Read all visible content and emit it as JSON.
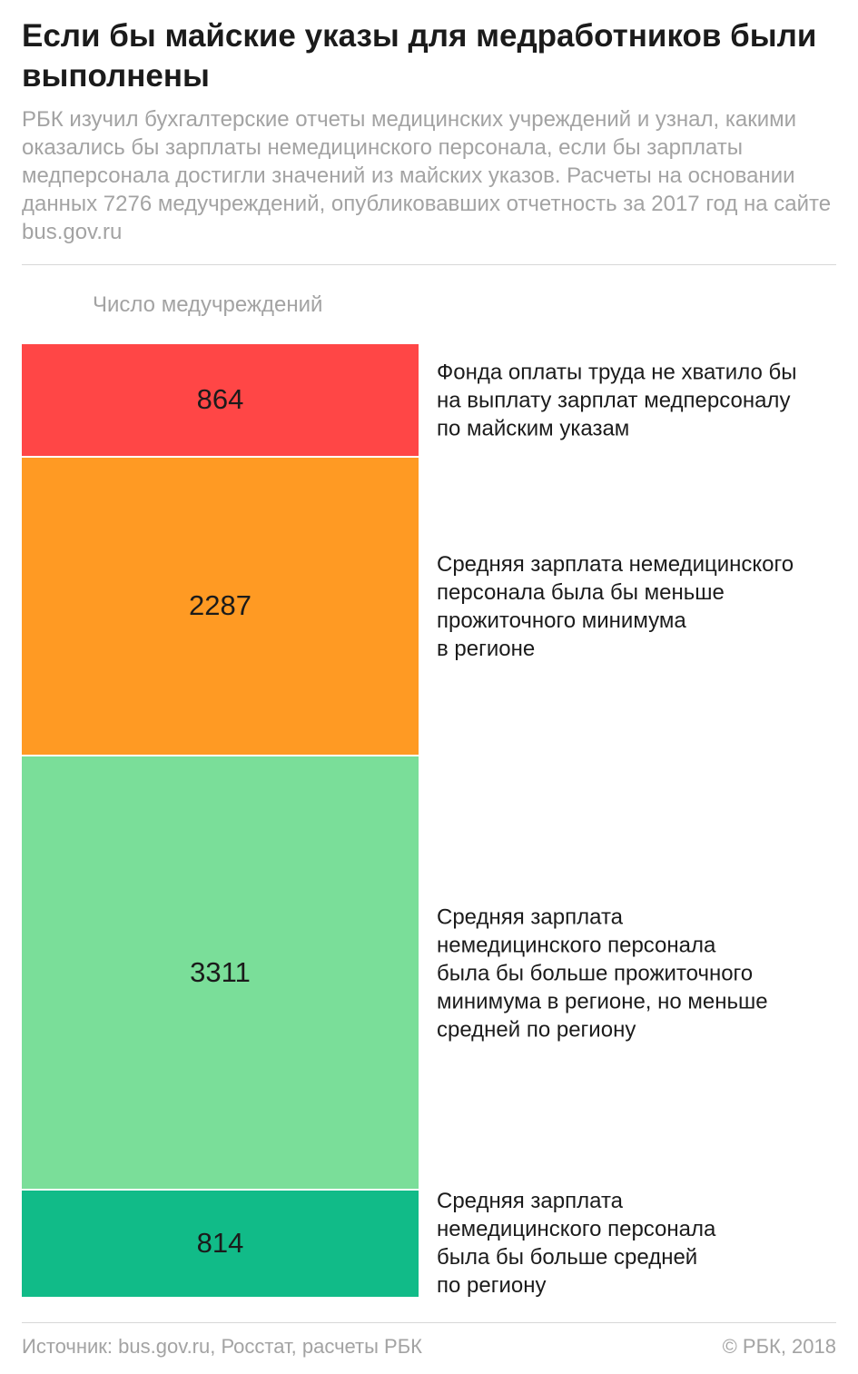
{
  "title": "Если бы майские указы для медработников были выполнены",
  "subtitle": "РБК изучил бухгалтерские отчеты медицинских учреждений и узнал, какими оказались бы зарплаты немедицинского персонала, если бы зарплаты медперсонала достигли значений из майских указов. Расчеты на основании данных 7276 медучреждений, опубликовавших отчетность за 2017 год на сайте bus.gov.ru",
  "footer": {
    "source": "Источник: bus.gov.ru, Росстат, расчеты РБК",
    "copyright": "© РБК, 2018"
  },
  "chart_data": {
    "type": "bar",
    "stacked": true,
    "ylabel": "Число медучреждений",
    "total": 7276,
    "categories": [
      "Фонда оплаты труда не хватило бы на выплату зарплат медперсоналу по майским указам",
      "Средняя зарплата немедицинского персонала была бы меньше прожиточного минимума в регионе",
      "Средняя зарплата немедицинского персонала была бы больше прожиточного минимума в регионе, но меньше средней по региону",
      "Средняя зарплата немедицинского персонала была бы больше средней по региону"
    ],
    "category_lines": [
      "Фонда оплаты труда не хватило бы\nна выплату зарплат медперсоналу\nпо майским указам",
      "Средняя зарплата немедицинского\nперсонала была бы меньше\nпрожиточного минимума\nв регионе",
      "Средняя зарплата\nнемедицинского персонала\nбыла бы больше прожиточного\nминимума в регионе, но меньше\nсредней по региону",
      "Средняя зарплата\nнемедицинского персонала\nбыла бы больше средней\nпо региону"
    ],
    "values": [
      864,
      2287,
      3311,
      814
    ],
    "colors": [
      "#ff4646",
      "#ff9a23",
      "#7ade99",
      "#11bb88"
    ]
  }
}
